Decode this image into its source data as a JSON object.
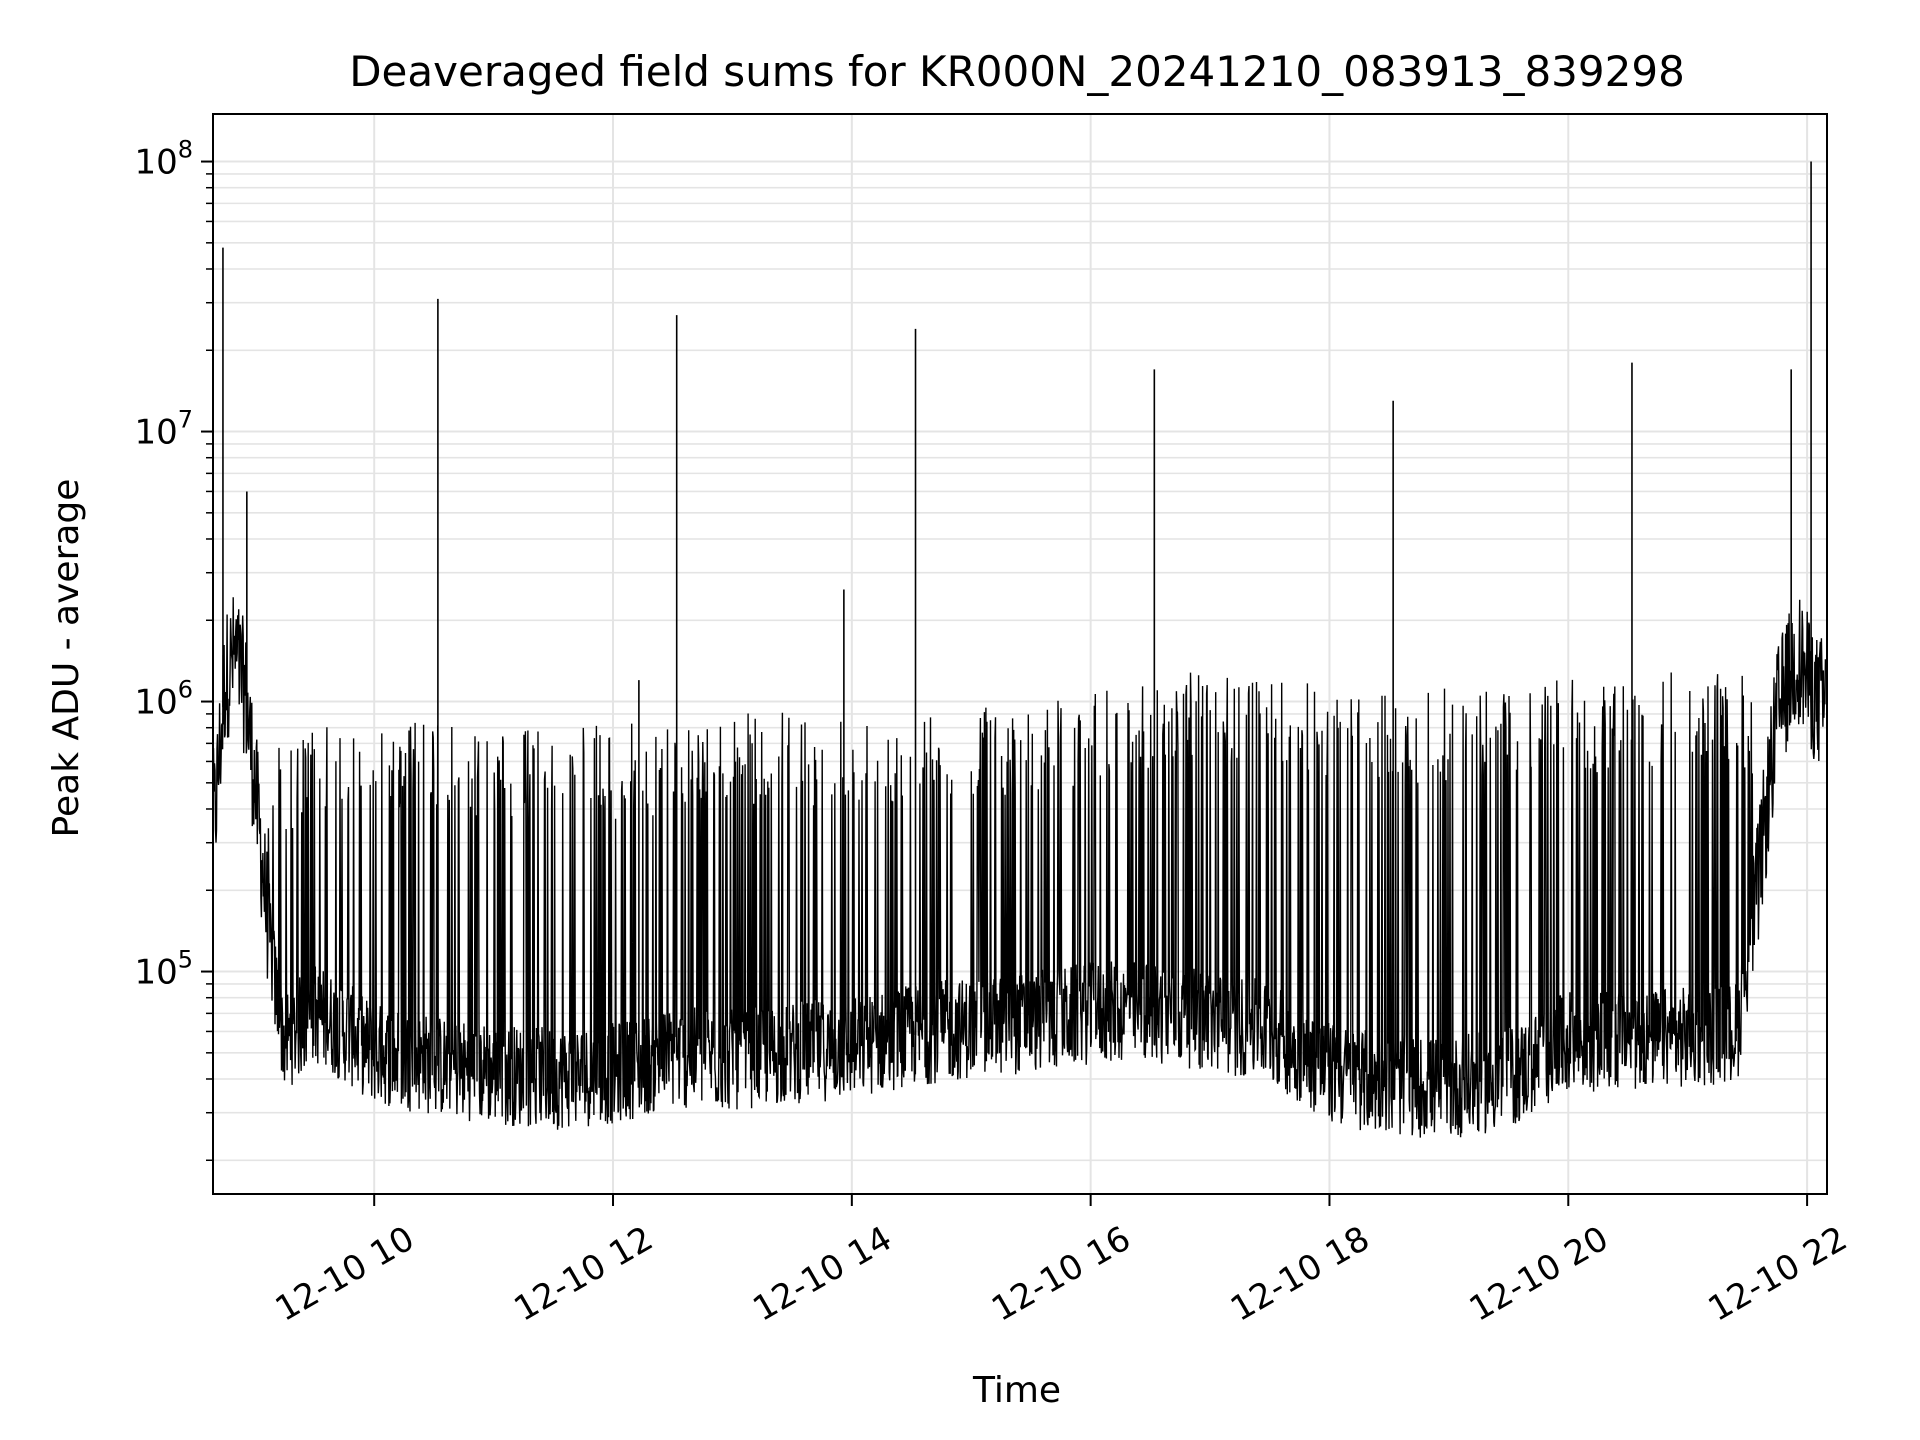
{
  "chart_data": {
    "type": "line",
    "title": "Deaveraged field sums for KR000N_20241210_083913_839298",
    "xlabel": "Time",
    "ylabel": "Peak ADU - average",
    "yscale": "log",
    "xlim": [
      "2024-12-10 08:39",
      "2024-12-10 22:10"
    ],
    "ylim": [
      15000,
      150000000
    ],
    "grid": true,
    "line_color": "#000000",
    "x_ticks": [
      {
        "value": "2024-12-10 10:00",
        "label": "12-10 10"
      },
      {
        "value": "2024-12-10 12:00",
        "label": "12-10 12"
      },
      {
        "value": "2024-12-10 14:00",
        "label": "12-10 14"
      },
      {
        "value": "2024-12-10 16:00",
        "label": "12-10 16"
      },
      {
        "value": "2024-12-10 18:00",
        "label": "12-10 18"
      },
      {
        "value": "2024-12-10 20:00",
        "label": "12-10 20"
      },
      {
        "value": "2024-12-10 22:00",
        "label": "12-10 22"
      }
    ],
    "y_ticks": [
      {
        "value": 100000,
        "base": "10",
        "exp": "5"
      },
      {
        "value": 1000000,
        "base": "10",
        "exp": "6"
      },
      {
        "value": 10000000,
        "base": "10",
        "exp": "7"
      },
      {
        "value": 100000000,
        "base": "10",
        "exp": "8"
      }
    ],
    "series": [
      {
        "x": [
          "2024-12-10 08:40",
          "2024-12-10 08:45",
          "2024-12-10 08:50",
          "2024-12-10 08:55",
          "2024-12-10 09:00",
          "2024-12-10 09:05",
          "2024-12-10 09:10",
          "2024-12-10 09:15",
          "2024-12-10 09:20",
          "2024-12-10 09:30",
          "2024-12-10 09:45",
          "2024-12-10 10:00",
          "2024-12-10 10:30",
          "2024-12-10 11:00",
          "2024-12-10 11:30",
          "2024-12-10 12:00",
          "2024-12-10 12:30",
          "2024-12-10 13:00",
          "2024-12-10 13:30",
          "2024-12-10 14:00",
          "2024-12-10 14:30",
          "2024-12-10 15:00",
          "2024-12-10 15:30",
          "2024-12-10 16:00",
          "2024-12-10 16:30",
          "2024-12-10 17:00",
          "2024-12-10 17:30",
          "2024-12-10 18:00",
          "2024-12-10 18:30",
          "2024-12-10 19:00",
          "2024-12-10 19:30",
          "2024-12-10 20:00",
          "2024-12-10 20:30",
          "2024-12-10 21:00",
          "2024-12-10 21:25",
          "2024-12-10 21:35",
          "2024-12-10 21:45",
          "2024-12-10 21:55",
          "2024-12-10 22:05"
        ],
        "y": [
          380000,
          1200000,
          1500000,
          1100000,
          500000,
          200000,
          90000,
          55000,
          60000,
          70000,
          60000,
          50000,
          45000,
          42000,
          40000,
          42000,
          48000,
          47000,
          50000,
          52000,
          58000,
          62000,
          65000,
          70000,
          72000,
          65000,
          60000,
          42000,
          38000,
          37000,
          40000,
          55000,
          56000,
          57000,
          60000,
          200000,
          900000,
          1500000,
          1000000
        ],
        "envelope_upper": [
          900000,
          2000000,
          2200000,
          1800000,
          800000,
          700000,
          700000,
          750000,
          750000,
          800000,
          820000,
          850000,
          850000,
          780000,
          800000,
          820000,
          850000,
          900000,
          920000,
          900000,
          900000,
          950000,
          1000000,
          1100000,
          1250000,
          1300000,
          1300000,
          1100000,
          1050000,
          1150000,
          1200000,
          1200000,
          1250000,
          1300000,
          1350000,
          1000000,
          1800000,
          2000000,
          1500000
        ],
        "spikes": [
          {
            "x": "2024-12-10 08:44",
            "y": 48000000
          },
          {
            "x": "2024-12-10 08:56",
            "y": 6000000
          },
          {
            "x": "2024-12-10 10:32",
            "y": 31000000
          },
          {
            "x": "2024-12-10 12:13",
            "y": 1200000
          },
          {
            "x": "2024-12-10 12:32",
            "y": 27000000
          },
          {
            "x": "2024-12-10 13:56",
            "y": 2600000
          },
          {
            "x": "2024-12-10 14:32",
            "y": 24000000
          },
          {
            "x": "2024-12-10 16:32",
            "y": 17000000
          },
          {
            "x": "2024-12-10 18:32",
            "y": 13000000
          },
          {
            "x": "2024-12-10 20:32",
            "y": 18000000
          },
          {
            "x": "2024-12-10 21:52",
            "y": 17000000
          },
          {
            "x": "2024-12-10 22:02",
            "y": 100000000
          }
        ]
      }
    ]
  }
}
